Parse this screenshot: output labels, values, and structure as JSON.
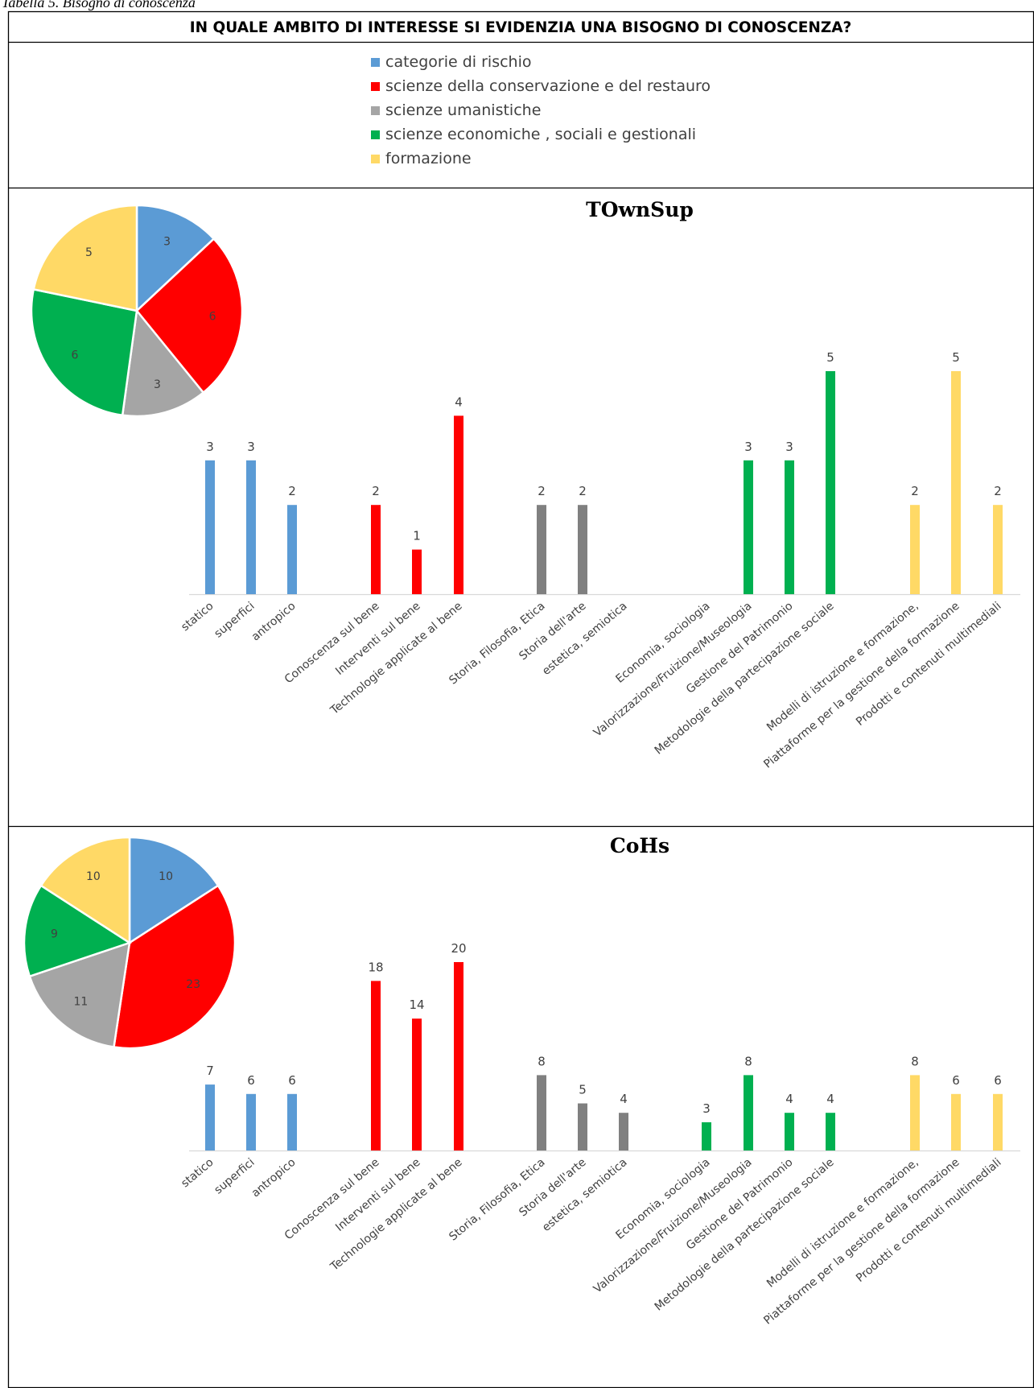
{
  "caption": "Tabella 5. Bisogno di conoscenza",
  "header": "IN QUALE AMBITO DI INTERESSE SI EVIDENZIA UNA BISOGNO DI CONOSCENZA?",
  "legend": [
    {
      "label": "categorie di rischio",
      "color": "#5B9BD5"
    },
    {
      "label": "scienze della conservazione e del restauro",
      "color": "#FF0000"
    },
    {
      "label": "scienze umanistiche",
      "color": "#A5A5A5"
    },
    {
      "label": "scienze economiche , sociali e gestionali",
      "color": "#00B050"
    },
    {
      "label": "formazione",
      "color": "#FFD966"
    }
  ],
  "chart_data": [
    {
      "type": "pie",
      "title": "TOwnSup",
      "categories": [
        "categorie di rischio",
        "scienze della conservazione e del restauro",
        "scienze umanistiche",
        "scienze economiche , sociali e gestionali",
        "formazione"
      ],
      "values": [
        3,
        6,
        3,
        6,
        5
      ],
      "colors": [
        "#5B9BD5",
        "#FF0000",
        "#A5A5A5",
        "#00B050",
        "#FFD966"
      ]
    },
    {
      "type": "bar",
      "title": "TOwnSup",
      "categories": [
        "statico",
        "superfici",
        "antropico",
        "Conoscenza sul bene",
        "Interventi sul bene",
        "Technologie applicate al bene",
        "Storia, Filosofia, Etica",
        "Storia dell'arte",
        "estetica, semiotica",
        "Economia, sociologia",
        "Valorizzazione/Fruizione/Museologia",
        "Gestione del Patrimonio",
        "Metodologie della partecipazione sociale",
        "Modelli di istruzione e formazione,",
        "Piattaforme per la gestione della formazione",
        "Prodotti e contenuti multimediali"
      ],
      "values": [
        3,
        3,
        2,
        2,
        1,
        4,
        2,
        2,
        null,
        null,
        3,
        3,
        5,
        2,
        5,
        2
      ],
      "colors": [
        "#5B9BD5",
        "#5B9BD5",
        "#5B9BD5",
        "#FF0000",
        "#FF0000",
        "#FF0000",
        "#808080",
        "#808080",
        "#808080",
        "#00B050",
        "#00B050",
        "#00B050",
        "#00B050",
        "#FFD966",
        "#FFD966",
        "#FFD966"
      ],
      "ylim": [
        0,
        5
      ]
    },
    {
      "type": "pie",
      "title": "CoHs",
      "categories": [
        "categorie di rischio",
        "scienze della conservazione e del restauro",
        "scienze umanistiche",
        "scienze economiche , sociali e gestionali",
        "formazione"
      ],
      "values": [
        10,
        23,
        11,
        9,
        10
      ],
      "colors": [
        "#5B9BD5",
        "#FF0000",
        "#A5A5A5",
        "#00B050",
        "#FFD966"
      ]
    },
    {
      "type": "bar",
      "title": "CoHs",
      "categories": [
        "statico",
        "superfici",
        "antropico",
        "Conoscenza sul bene",
        "Interventi sul bene",
        "Technologie applicate al bene",
        "Storia, Filosofia, Etica",
        "Storia dell'arte",
        "estetica, semiotica",
        "Economia, sociologia",
        "Valorizzazione/Fruizione/Museologia",
        "Gestione del Patrimonio",
        "Metodologie della partecipazione sociale",
        "Modelli di istruzione e formazione,",
        "Piattaforme per la gestione della formazione",
        "Prodotti e contenuti multimediali"
      ],
      "values": [
        7,
        6,
        6,
        18,
        14,
        20,
        8,
        5,
        4,
        3,
        8,
        4,
        4,
        8,
        6,
        6
      ],
      "colors": [
        "#5B9BD5",
        "#5B9BD5",
        "#5B9BD5",
        "#FF0000",
        "#FF0000",
        "#FF0000",
        "#808080",
        "#808080",
        "#808080",
        "#00B050",
        "#00B050",
        "#00B050",
        "#00B050",
        "#FFD966",
        "#FFD966",
        "#FFD966"
      ],
      "ylim": [
        0,
        20
      ]
    }
  ]
}
